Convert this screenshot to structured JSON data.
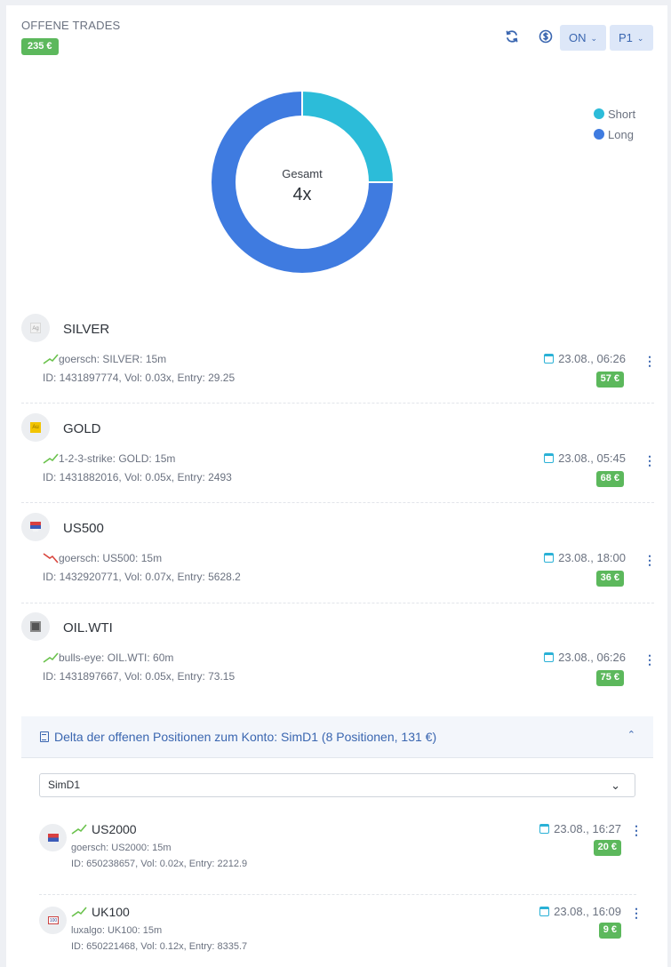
{
  "header": {
    "title": "OFFENE TRADES",
    "total_pnl": "235 €",
    "refresh_icon": "refresh-icon",
    "currency_icon": "currency-icon",
    "dropdown_on": "ON",
    "dropdown_p": "P1"
  },
  "chart_data": {
    "type": "pie",
    "center_label": "Gesamt",
    "center_value": "4x",
    "series": [
      {
        "name": "Short",
        "value": 1,
        "color": "#2cbcd9"
      },
      {
        "name": "Long",
        "value": 3,
        "color": "#3f7be0"
      }
    ]
  },
  "legend": {
    "short": "Short",
    "long": "Long"
  },
  "trades": [
    {
      "symbol": "SILVER",
      "icon_text": "Ag",
      "strategy": "goersch: SILVER: 15m",
      "direction": "long",
      "info": "ID: 1431897774, Vol: 0.03x, Entry: 29.25",
      "date": "23.08., 06:26",
      "pnl": "57 €"
    },
    {
      "symbol": "GOLD",
      "icon_text": "Au",
      "strategy": "1-2-3-strike: GOLD: 15m",
      "direction": "long",
      "info": "ID: 1431882016, Vol: 0.05x, Entry: 2493",
      "date": "23.08., 05:45",
      "pnl": "68 €"
    },
    {
      "symbol": "US500",
      "icon_text": "500",
      "strategy": "goersch: US500: 15m",
      "direction": "short",
      "info": "ID: 1432920771, Vol: 0.07x, Entry: 5628.2",
      "date": "23.08., 18:00",
      "pnl": "36 €"
    },
    {
      "symbol": "OIL.WTI",
      "icon_text": "",
      "strategy": "bulls-eye: OIL.WTI: 60m",
      "direction": "long",
      "info": "ID: 1431897667, Vol: 0.05x, Entry: 73.15",
      "date": "23.08., 06:26",
      "pnl": "75 €"
    }
  ],
  "delta": {
    "title": "Delta der offenen Positionen zum Konto: SimD1 (8 Positionen, 131 €)",
    "account_select": "SimD1"
  },
  "delta_positions": [
    {
      "symbol": "US2000",
      "icon_text": "",
      "strategy": "goersch: US2000: 15m",
      "info": "ID: 650238657, Vol: 0.02x, Entry: 2212.9",
      "date": "23.08., 16:27",
      "pnl": "20 €"
    },
    {
      "symbol": "UK100",
      "icon_text": "100",
      "strategy": "luxalgo: UK100: 15m",
      "info": "ID: 650221468, Vol: 0.12x, Entry: 8335.7",
      "date": "23.08., 16:09",
      "pnl": "9 €"
    }
  ]
}
